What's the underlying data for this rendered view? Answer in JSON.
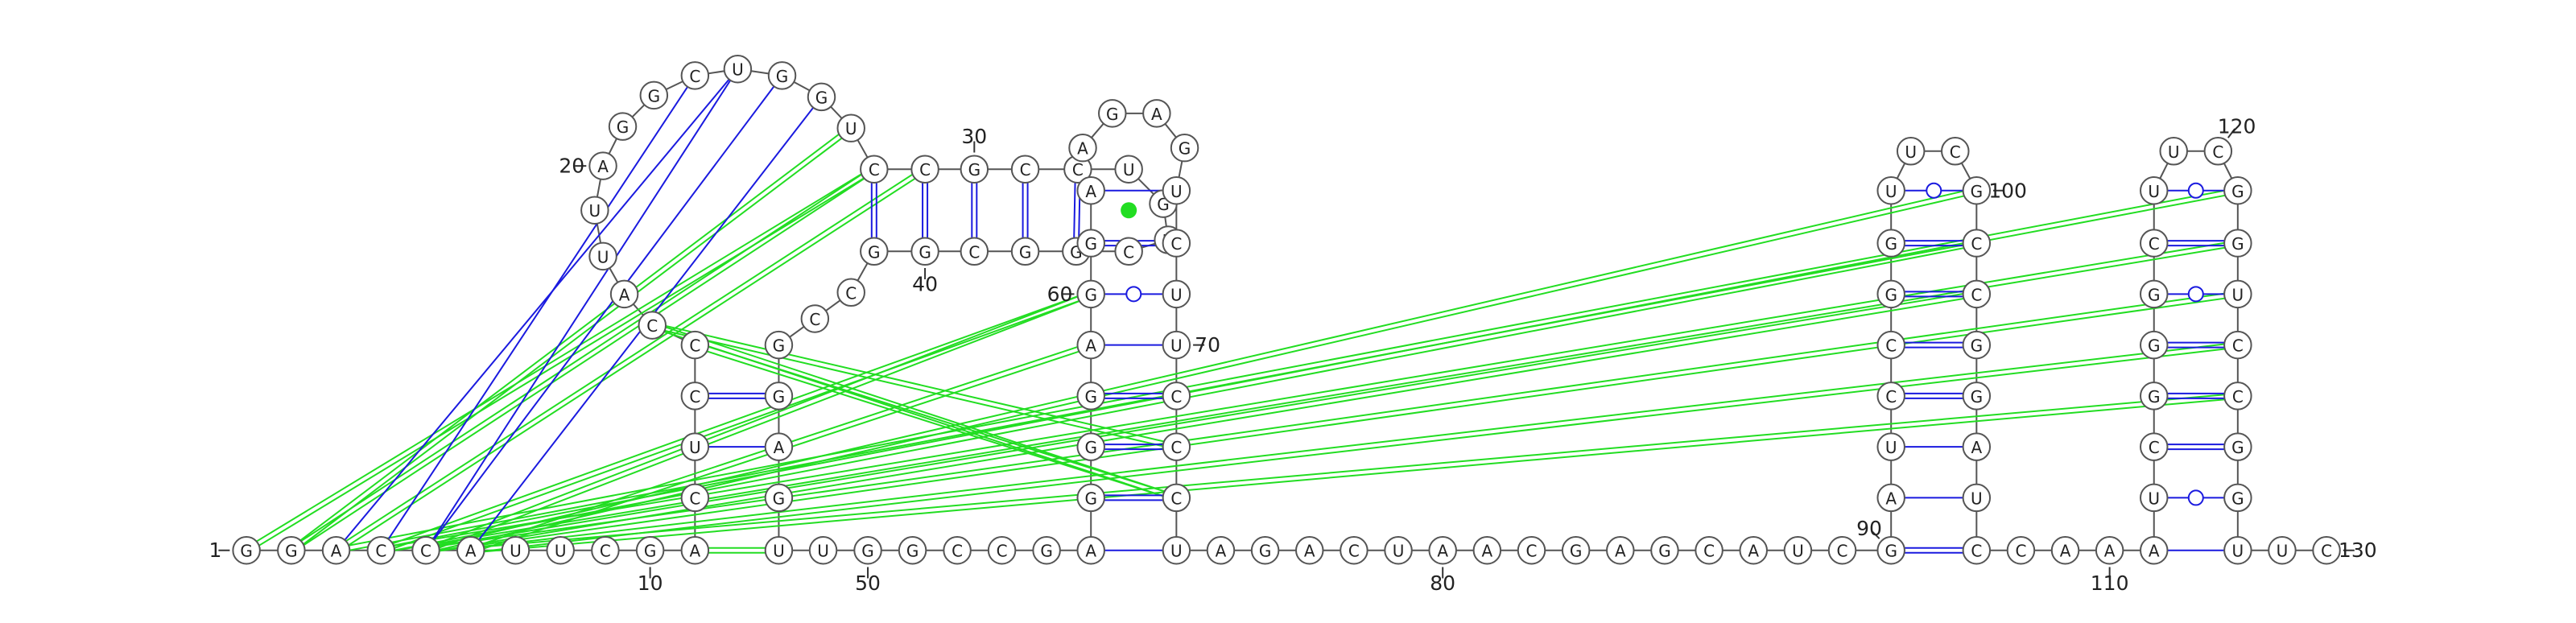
{
  "sequence": [
    "G",
    "G",
    "A",
    "C",
    "C",
    "A",
    "U",
    "U",
    "C",
    "G",
    "A",
    "C",
    "U",
    "C",
    "C",
    "C",
    "A",
    "U",
    "U",
    "A",
    "G",
    "G",
    "C",
    "U",
    "G",
    "G",
    "U",
    "C",
    "C",
    "G",
    "C",
    "C",
    "U",
    "G",
    "U",
    "C",
    "G",
    "G",
    "C",
    "G",
    "G",
    "C",
    "C",
    "G",
    "G",
    "A",
    "G",
    "U",
    "U",
    "G",
    "G",
    "C",
    "C",
    "G",
    "A",
    "G",
    "G",
    "G",
    "A",
    "G",
    "G",
    "A",
    "A",
    "G",
    "A",
    "G",
    "U",
    "C",
    "U",
    "U",
    "C",
    "C",
    "C",
    "U",
    "A",
    "G",
    "A",
    "C",
    "U",
    "A",
    "A",
    "C",
    "G",
    "A",
    "G",
    "C",
    "A",
    "U",
    "C",
    "G",
    "A",
    "U",
    "C",
    "C",
    "G",
    "G",
    "U",
    "U",
    "C",
    "G",
    "C",
    "C",
    "G",
    "G",
    "A",
    "U",
    "C",
    "C",
    "A",
    "A",
    "A",
    "U",
    "C",
    "G",
    "G",
    "G",
    "C",
    "U",
    "U",
    "C",
    "G",
    "G",
    "U",
    "C",
    "C",
    "G",
    "G",
    "U",
    "U",
    "C"
  ],
  "position_labels": [
    1,
    10,
    20,
    30,
    40,
    50,
    60,
    70,
    80,
    90,
    100,
    110,
    120,
    130
  ]
}
